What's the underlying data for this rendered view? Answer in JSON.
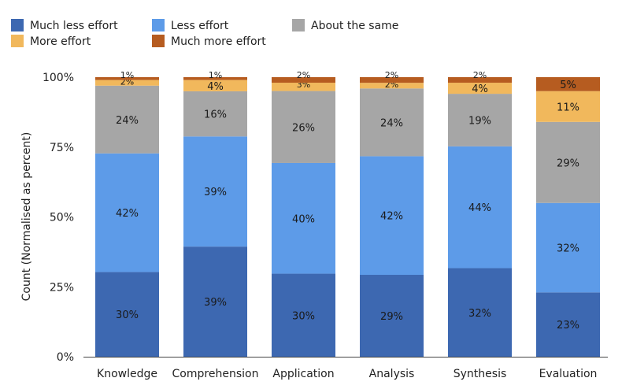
{
  "chart_data": {
    "type": "bar",
    "stacked": true,
    "ylabel": "Count (Normalised as percent)",
    "ylim": [
      0,
      100
    ],
    "yticks": [
      "0%",
      "25%",
      "50%",
      "75%",
      "100%"
    ],
    "categories": [
      "Knowledge",
      "Comprehension",
      "Application",
      "Analysis",
      "Synthesis",
      "Evaluation"
    ],
    "series": [
      {
        "name": "Much less effort",
        "color": "#3d68b1",
        "values": [
          30,
          39,
          30,
          29,
          32,
          23
        ]
      },
      {
        "name": "Less effort",
        "color": "#5d9be8",
        "values": [
          42,
          39,
          40,
          42,
          44,
          32
        ]
      },
      {
        "name": "About the same",
        "color": "#a6a6a6",
        "values": [
          24,
          16,
          26,
          24,
          19,
          29
        ]
      },
      {
        "name": "More effort",
        "color": "#f1b85c",
        "values": [
          2,
          4,
          3,
          2,
          4,
          11
        ]
      },
      {
        "name": "Much more effort",
        "color": "#b65c20",
        "values": [
          1,
          1,
          2,
          2,
          2,
          5
        ]
      }
    ],
    "labels": [
      [
        "30%",
        "39%",
        "30%",
        "29%",
        "32%",
        "23%"
      ],
      [
        "42%",
        "39%",
        "40%",
        "42%",
        "44%",
        "32%"
      ],
      [
        "24%",
        "16%",
        "26%",
        "24%",
        "19%",
        "29%"
      ],
      [
        "2%",
        "4%",
        "3%",
        "2%",
        "4%",
        "11%"
      ],
      [
        "1%",
        "1%",
        "2%",
        "2%",
        "2%",
        "5%"
      ]
    ],
    "legend_position": "top-left",
    "grid": false
  }
}
